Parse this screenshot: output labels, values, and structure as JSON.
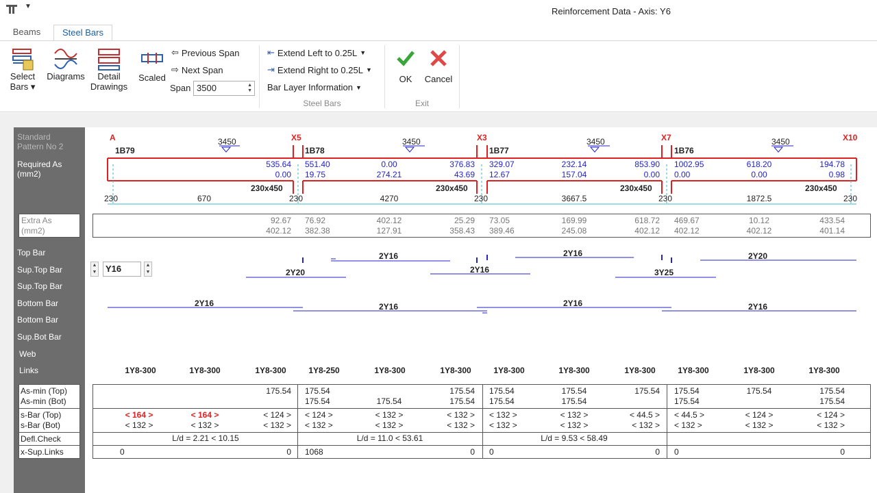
{
  "window": {
    "title": "Reinforcement Data - Axis: Y6"
  },
  "tabs": [
    {
      "label": "Beams"
    },
    {
      "label": "Steel Bars"
    }
  ],
  "ribbon": {
    "select_bars": "Select",
    "select_bars2": "Bars",
    "diagrams": "Diagrams",
    "detail": "Detail",
    "detail2": "Drawings",
    "scaled": "Scaled",
    "prev_span": "Previous Span",
    "next_span": "Next Span",
    "span_label": "Span",
    "span_value": "3500",
    "extend_left": "Extend Left to 0.25L",
    "extend_right": "Extend Right to 0.25L",
    "bar_layer": "Bar Layer Information",
    "group_steel": "Steel Bars",
    "ok": "OK",
    "cancel": "Cancel",
    "group_exit": "Exit"
  },
  "row_labels": {
    "pattern1": "Standard",
    "pattern2": "Pattern No 2",
    "req1": "Required As",
    "req2": "(mm2)",
    "extra1": "Extra As",
    "extra2": "(mm2)",
    "top_bar": "Top Bar",
    "sup_top1": "Sup.Top Bar",
    "sup_top2": "Sup.Top Bar",
    "bottom1": "Bottom Bar",
    "bottom2": "Bottom Bar",
    "sup_bot": "Sup.Bot Bar",
    "web": "Web",
    "links": "Links"
  },
  "bar_input": "Y16",
  "axes": [
    "A",
    "X5",
    "X3",
    "X7",
    "X10"
  ],
  "beams": [
    "1B79",
    "1B78",
    "1B77",
    "1B76"
  ],
  "spans": [
    "3450",
    "3450",
    "3450",
    "3450"
  ],
  "sections": [
    "230x450",
    "230x450",
    "230x450",
    "230x450"
  ],
  "required": {
    "top": [
      [
        "",
        "",
        "535.64"
      ],
      [
        "551.40",
        "0.00",
        "376.83"
      ],
      [
        "329.07",
        "232.14",
        "853.90"
      ],
      [
        "1002.95",
        "618.20",
        "194.78"
      ]
    ],
    "bot": [
      [
        "",
        "",
        "0.00"
      ],
      [
        "19.75",
        "274.21",
        "43.69"
      ],
      [
        "12.67",
        "157.04",
        "0.00"
      ],
      [
        "0.00",
        "0.00",
        "0.98"
      ]
    ]
  },
  "dims": {
    "supports": [
      "230",
      "230",
      "230",
      "230",
      "230"
    ],
    "clear": [
      "670",
      "4270",
      "3667.5",
      "1872.5"
    ]
  },
  "extra": {
    "top": [
      [
        "",
        "",
        "92.67"
      ],
      [
        "76.92",
        "402.12",
        "25.29"
      ],
      [
        "73.05",
        "169.99",
        "618.72"
      ],
      [
        "469.67",
        "10.12",
        "433.54"
      ]
    ],
    "bot": [
      [
        "",
        "",
        "402.12"
      ],
      [
        "382.38",
        "127.91",
        "358.43"
      ],
      [
        "389.46",
        "245.08",
        "402.12"
      ],
      [
        "402.12",
        "402.12",
        "401.14"
      ]
    ]
  },
  "bars": {
    "top": [
      "2Y16",
      "2Y16",
      "2Y20"
    ],
    "sup_top": [
      "2Y20",
      "2Y16",
      "3Y25"
    ],
    "bottom": [
      "2Y16",
      "2Y16",
      "2Y16",
      "2Y16"
    ]
  },
  "links": [
    "1Y8-300",
    "1Y8-300",
    "1Y8-300",
    "1Y8-250",
    "1Y8-300",
    "1Y8-300",
    "1Y8-300",
    "1Y8-300",
    "1Y8-300",
    "1Y8-300",
    "1Y8-300",
    "1Y8-300"
  ],
  "grid_labels": {
    "asmin_top": "As-min (Top)",
    "asmin_bot": "As-min (Bot)",
    "sbar_top": "s-Bar (Top)",
    "sbar_bot": "s-Bar (Bot)",
    "defl": "Defl.Check",
    "xsup": "x-Sup.Links"
  },
  "asmin": {
    "top": [
      [
        "",
        "",
        "175.54"
      ],
      [
        "175.54",
        "",
        "175.54"
      ],
      [
        "175.54",
        "175.54",
        "175.54"
      ],
      [
        "175.54",
        "175.54",
        "175.54"
      ]
    ],
    "bot": [
      [
        "",
        "",
        ""
      ],
      [
        "175.54",
        "175.54",
        "175.54"
      ],
      [
        "175.54",
        "175.54",
        ""
      ],
      [
        "175.54",
        "",
        "175.54"
      ]
    ]
  },
  "sbar": {
    "top": [
      [
        "< 164 >",
        "< 164 >",
        "< 124 >"
      ],
      [
        "< 124 >",
        "< 132 >",
        "< 132 >"
      ],
      [
        "< 132 >",
        "< 132 >",
        "< 44.5 >"
      ],
      [
        "< 44.5 >",
        "< 124 >",
        "< 124 >"
      ]
    ],
    "bot": [
      [
        "< 132 >",
        "< 132 >",
        "< 132 >"
      ],
      [
        "< 132 >",
        "< 132 >",
        "< 132 >"
      ],
      [
        "< 132 >",
        "< 132 >",
        "< 132 >"
      ],
      [
        "< 132 >",
        "< 132 >",
        "< 132 >"
      ]
    ]
  },
  "defl": [
    "L/d = 2.21 < 10.15",
    "L/d = 11.0 < 53.61",
    "L/d = 9.53 < 58.49",
    ""
  ],
  "xsup": [
    [
      "0",
      "0"
    ],
    [
      "1068",
      "0"
    ],
    [
      "0",
      "0"
    ],
    [
      "0",
      "0"
    ]
  ],
  "colors": {
    "accent": "#1a5fa8",
    "beam": "#e02020",
    "bar": "#2323c8",
    "sidebar": "#6d6d6d"
  }
}
